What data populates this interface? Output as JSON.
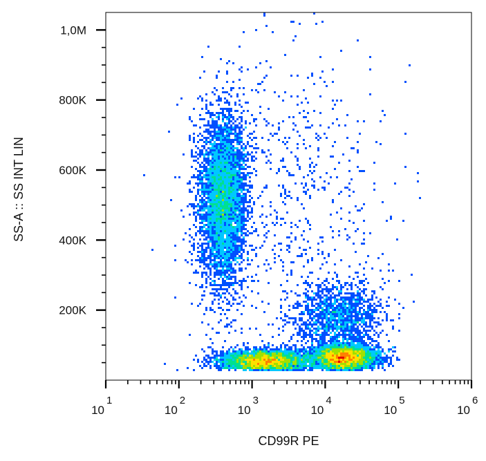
{
  "chart_data": {
    "type": "scatter",
    "title": "",
    "xlabel": "CD99R PE",
    "ylabel": "SS-A :: SS INT LIN",
    "x_scale": "log",
    "xlim": [
      10,
      1000000
    ],
    "ylim": [
      0,
      1050000
    ],
    "x_ticks": [
      {
        "base": "10",
        "exp": "1"
      },
      {
        "base": "10",
        "exp": "2"
      },
      {
        "base": "10",
        "exp": "3"
      },
      {
        "base": "10",
        "exp": "4"
      },
      {
        "base": "10",
        "exp": "5"
      },
      {
        "base": "10",
        "exp": "6"
      }
    ],
    "y_ticks": [
      {
        "value": 200000,
        "label": "200K"
      },
      {
        "value": 400000,
        "label": "400K"
      },
      {
        "value": 600000,
        "label": "600K"
      },
      {
        "value": 800000,
        "label": "800K"
      },
      {
        "value": 1000000,
        "label": "1,0M"
      }
    ],
    "grid": false,
    "legend": "none",
    "density_colormap": [
      "#0000c8",
      "#0050ff",
      "#00c8ff",
      "#00e090",
      "#a0e000",
      "#ffe000",
      "#ff8000",
      "#e00000"
    ],
    "populations": [
      {
        "x_center": 400,
        "y_center": 520000,
        "x_spread_decades": 0.16,
        "y_spread": 120000,
        "density": 1.0
      },
      {
        "x_center": 1500,
        "y_center": 55000,
        "x_spread_decades": 0.3,
        "y_spread": 15000,
        "density": 0.9
      },
      {
        "x_center": 18000,
        "y_center": 65000,
        "x_spread_decades": 0.22,
        "y_spread": 18000,
        "density": 0.95
      },
      {
        "x_center": 15000,
        "y_center": 180000,
        "x_spread_decades": 0.3,
        "y_spread": 50000,
        "density": 0.3
      },
      {
        "x_center": 3000,
        "y_center": 500000,
        "x_spread_decades": 0.7,
        "y_spread": 250000,
        "density": 0.15
      }
    ]
  }
}
